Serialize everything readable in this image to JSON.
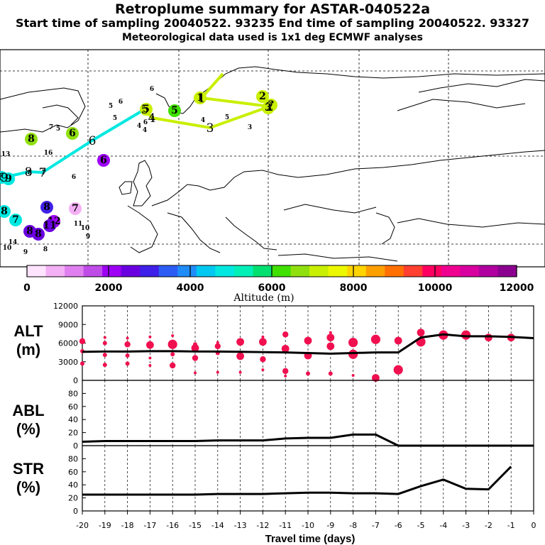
{
  "header": {
    "title": "Retroplume summary for ASTAR-040522a",
    "sampling_times": "Start time of sampling 20040522. 93235     End time of sampling 20040522. 93327",
    "met_data": "Meteorological data used is 1x1 deg ECMWF analyses"
  },
  "colors": {
    "scale": [
      "#ffe4ff",
      "#f4b0f4",
      "#e080f0",
      "#c04ce8",
      "#9d00f5",
      "#6a00e0",
      "#3f20e8",
      "#2d5cf5",
      "#1f8cf8",
      "#00c8f0",
      "#00e8e0",
      "#00f0b8",
      "#00e070",
      "#40e000",
      "#90e010",
      "#c8f000",
      "#ecf800",
      "#ffd400",
      "#ffa000",
      "#ff7000",
      "#ff4030",
      "#ff0060",
      "#f00090",
      "#d800a0",
      "#b000a0",
      "#8c0090"
    ],
    "markers": "#f0104f",
    "line": "#000000",
    "frame": "#000000"
  },
  "map": {
    "trajectory": [
      {
        "day": 1,
        "label": "1",
        "color": "#c8f000"
      },
      {
        "day": 2,
        "label": "2",
        "color": "#c8f000"
      },
      {
        "day": 3,
        "label": "3",
        "color": "#c8f000"
      },
      {
        "day": 4,
        "label": "4",
        "color": "#c8f000"
      },
      {
        "day": 5,
        "label": "5",
        "color": "#40e000"
      },
      {
        "day": 6,
        "label": "6",
        "color": "#00e8e0"
      },
      {
        "day": 7,
        "label": "7",
        "color": "#00e8e0"
      },
      {
        "day": 8,
        "label": "8",
        "color": "#00e8e0"
      },
      {
        "day": 9,
        "label": "9",
        "color": "#00e8e0"
      }
    ],
    "clusters": [
      {
        "label": "1",
        "color": "#c8f000",
        "big": true
      },
      {
        "label": "2",
        "color": "#c8f000",
        "big": true
      },
      {
        "label": "3",
        "color": "#c8f000",
        "big": true
      },
      {
        "label": "3",
        "color": "#c8f000",
        "big": true
      },
      {
        "label": "3",
        "color": "#c8f000",
        "big": false
      },
      {
        "label": "5",
        "color": "#c8f000",
        "big": false
      },
      {
        "label": "4",
        "color": "#c8f000",
        "big": false
      },
      {
        "label": "5",
        "color": "#40e000",
        "big": true
      },
      {
        "label": "5",
        "color": "#c8f000",
        "big": true
      },
      {
        "label": "4",
        "color": "#c8f000",
        "big": false
      },
      {
        "label": "6",
        "color": "#c8f000",
        "big": false
      },
      {
        "label": "4",
        "color": "#ecf800",
        "big": false
      },
      {
        "label": "5",
        "color": "#ffd400",
        "big": false
      },
      {
        "label": "6",
        "color": "#ffd400",
        "big": false
      },
      {
        "label": "6",
        "color": "#ecf800",
        "big": false
      },
      {
        "label": "5",
        "color": "#ecf800",
        "big": false
      },
      {
        "label": "7",
        "color": "#ecf800",
        "big": false
      },
      {
        "label": "5",
        "color": "#ecf800",
        "big": false
      },
      {
        "label": "6",
        "color": "#c8f000",
        "big": false
      },
      {
        "label": "4",
        "color": "#c8f000",
        "big": false
      },
      {
        "label": "6",
        "color": "#90e010",
        "big": true
      },
      {
        "label": "8",
        "color": "#90e010",
        "big": true
      },
      {
        "label": "6",
        "color": "#9d00f5",
        "big": true
      },
      {
        "label": "13",
        "color": "#00c8f0",
        "big": false
      },
      {
        "label": "16",
        "color": "#00c8f0",
        "big": false
      },
      {
        "label": "6",
        "color": "#00e8e0",
        "big": false
      },
      {
        "label": "8",
        "color": "#00e8e0",
        "big": false
      },
      {
        "label": "7",
        "color": "#00e8e0",
        "big": false
      },
      {
        "label": "6",
        "color": "#00e8e0",
        "big": true
      },
      {
        "label": "8",
        "color": "#00e8e0",
        "big": true
      },
      {
        "label": "7",
        "color": "#00e8e0",
        "big": true
      },
      {
        "label": "9",
        "color": "#00e8e0",
        "big": true
      },
      {
        "label": "7",
        "color": "#f4b0f4",
        "big": true
      },
      {
        "label": "8",
        "color": "#3f20e8",
        "big": true
      },
      {
        "label": "8",
        "color": "#6a00e0",
        "big": true
      },
      {
        "label": "12",
        "color": "#9d00f5",
        "big": true
      },
      {
        "label": "8",
        "color": "#6a00e0",
        "big": true
      },
      {
        "label": "11",
        "color": "#6a00e0",
        "big": true
      },
      {
        "label": "11",
        "color": "#c04ce8",
        "big": false
      },
      {
        "label": "10",
        "color": "#c04ce8",
        "big": false
      },
      {
        "label": "9",
        "color": "#c04ce8",
        "big": false
      },
      {
        "label": "10",
        "color": "#e080f0",
        "big": false
      },
      {
        "label": "14",
        "color": "#e080f0",
        "big": false
      },
      {
        "label": "9",
        "color": "#c04ce8",
        "big": false
      },
      {
        "label": "8",
        "color": "#e080f0",
        "big": false
      }
    ]
  },
  "colorbar": {
    "ticks": [
      "0",
      "2000",
      "4000",
      "6000",
      "8000",
      "10000",
      "12000"
    ],
    "label": "Altitude (m)",
    "range": [
      0,
      12000
    ]
  },
  "chart_data": [
    {
      "type": "scatter+line",
      "title": "ALT (m)",
      "ylabel": "ALT (m)",
      "xlabel": "Travel time (days)",
      "x_ticks": [
        "-20",
        "-19",
        "-18",
        "-17",
        "-16",
        "-15",
        "-14",
        "-13",
        "-12",
        "-11",
        "-10",
        "-9",
        "-8",
        "-7",
        "-6",
        "-5",
        "-4",
        "-3",
        "-2",
        "-1",
        "0"
      ],
      "y_ticks": [
        "0",
        "3000",
        "6000",
        "9000",
        "12000"
      ],
      "xlim": [
        -20,
        0
      ],
      "ylim": [
        0,
        12000
      ],
      "mean_line": {
        "x": [
          -20,
          -19,
          -18,
          -17,
          -16,
          -15,
          -14,
          -13,
          -12,
          -11,
          -10,
          -9,
          -8,
          -7,
          -6,
          -5,
          -4,
          -3,
          -2,
          -1,
          0
        ],
        "y": [
          4600,
          4650,
          4650,
          4700,
          4700,
          4650,
          4650,
          4600,
          4550,
          4500,
          4400,
          4300,
          4400,
          4500,
          4500,
          6900,
          7400,
          7100,
          7100,
          7000,
          6800
        ]
      },
      "clusters": [
        {
          "x": -20,
          "y": 6300,
          "size": 3
        },
        {
          "x": -20,
          "y": 4700,
          "size": 2
        },
        {
          "x": -20,
          "y": 2700,
          "size": 2
        },
        {
          "x": -19,
          "y": 6900,
          "size": 1
        },
        {
          "x": -19,
          "y": 6000,
          "size": 2
        },
        {
          "x": -19,
          "y": 4100,
          "size": 2
        },
        {
          "x": -19,
          "y": 2500,
          "size": 2
        },
        {
          "x": -18,
          "y": 6800,
          "size": 1
        },
        {
          "x": -18,
          "y": 5800,
          "size": 3
        },
        {
          "x": -18,
          "y": 4000,
          "size": 2
        },
        {
          "x": -18,
          "y": 2700,
          "size": 2
        },
        {
          "x": -17,
          "y": 7000,
          "size": 1
        },
        {
          "x": -17,
          "y": 5700,
          "size": 4
        },
        {
          "x": -17,
          "y": 3600,
          "size": 1
        },
        {
          "x": -17,
          "y": 2400,
          "size": 1
        },
        {
          "x": -16,
          "y": 7200,
          "size": 1
        },
        {
          "x": -16,
          "y": 5800,
          "size": 5
        },
        {
          "x": -16,
          "y": 4200,
          "size": 2
        },
        {
          "x": -16,
          "y": 2400,
          "size": 3
        },
        {
          "x": -15,
          "y": 5800,
          "size": 2
        },
        {
          "x": -15,
          "y": 5200,
          "size": 4
        },
        {
          "x": -15,
          "y": 3600,
          "size": 3
        },
        {
          "x": -15,
          "y": 1200,
          "size": 1
        },
        {
          "x": -14,
          "y": 6100,
          "size": 1
        },
        {
          "x": -14,
          "y": 5500,
          "size": 3
        },
        {
          "x": -14,
          "y": 4400,
          "size": 2
        },
        {
          "x": -14,
          "y": 1300,
          "size": 1
        },
        {
          "x": -13,
          "y": 6200,
          "size": 4
        },
        {
          "x": -13,
          "y": 3900,
          "size": 4
        },
        {
          "x": -13,
          "y": 1300,
          "size": 1
        },
        {
          "x": -12,
          "y": 7000,
          "size": 1
        },
        {
          "x": -12,
          "y": 6200,
          "size": 4
        },
        {
          "x": -12,
          "y": 3400,
          "size": 3
        },
        {
          "x": -12,
          "y": 1700,
          "size": 1
        },
        {
          "x": -11,
          "y": 7400,
          "size": 3
        },
        {
          "x": -11,
          "y": 5100,
          "size": 4
        },
        {
          "x": -11,
          "y": 1500,
          "size": 3
        },
        {
          "x": -11,
          "y": 700,
          "size": 1
        },
        {
          "x": -10,
          "y": 6400,
          "size": 4
        },
        {
          "x": -10,
          "y": 4000,
          "size": 4
        },
        {
          "x": -10,
          "y": 1100,
          "size": 2
        },
        {
          "x": -9,
          "y": 7700,
          "size": 1
        },
        {
          "x": -9,
          "y": 6900,
          "size": 4
        },
        {
          "x": -9,
          "y": 5500,
          "size": 4
        },
        {
          "x": -9,
          "y": 1100,
          "size": 2
        },
        {
          "x": -8,
          "y": 6100,
          "size": 5
        },
        {
          "x": -8,
          "y": 4200,
          "size": 5
        },
        {
          "x": -8,
          "y": 800,
          "size": 1
        },
        {
          "x": -7,
          "y": 6600,
          "size": 5
        },
        {
          "x": -7,
          "y": 400,
          "size": 4
        },
        {
          "x": -6,
          "y": 6400,
          "size": 4
        },
        {
          "x": -6,
          "y": 1700,
          "size": 5
        },
        {
          "x": -5,
          "y": 7700,
          "size": 4
        },
        {
          "x": -5,
          "y": 6200,
          "size": 5
        },
        {
          "x": -4,
          "y": 7300,
          "size": 5
        },
        {
          "x": -3,
          "y": 7300,
          "size": 5
        },
        {
          "x": -2,
          "y": 6900,
          "size": 4
        },
        {
          "x": -1,
          "y": 6900,
          "size": 4
        }
      ]
    },
    {
      "type": "line",
      "title": "ABL (%)",
      "ylabel": "ABL (%)",
      "y_ticks": [
        "0",
        "20",
        "40",
        "60",
        "80"
      ],
      "xlim": [
        -20,
        0
      ],
      "ylim": [
        0,
        100
      ],
      "x": [
        -20,
        -19,
        -18,
        -17,
        -16,
        -15,
        -14,
        -13,
        -12,
        -11,
        -10,
        -9,
        -8,
        -7,
        -6,
        -5,
        -4,
        -3,
        -2,
        -1,
        0
      ],
      "values": [
        6,
        7,
        7,
        7,
        7,
        7,
        8,
        8,
        8,
        11,
        12,
        12,
        17,
        17,
        0,
        0,
        0,
        0,
        0,
        0,
        0
      ]
    },
    {
      "type": "line",
      "title": "STR (%)",
      "ylabel": "STR (%)",
      "y_ticks": [
        "0",
        "20",
        "40",
        "60",
        "80"
      ],
      "xlim": [
        -20,
        0
      ],
      "ylim": [
        0,
        100
      ],
      "x": [
        -20,
        -19,
        -18,
        -17,
        -16,
        -15,
        -14,
        -13,
        -12,
        -11,
        -10,
        -9,
        -8,
        -7,
        -6,
        -5,
        -4,
        -3,
        -2,
        -1
      ],
      "values": [
        25,
        25,
        25,
        25,
        25,
        25,
        26,
        26,
        26,
        27,
        28,
        28,
        27,
        27,
        26,
        38,
        48,
        34,
        33,
        68
      ]
    }
  ]
}
